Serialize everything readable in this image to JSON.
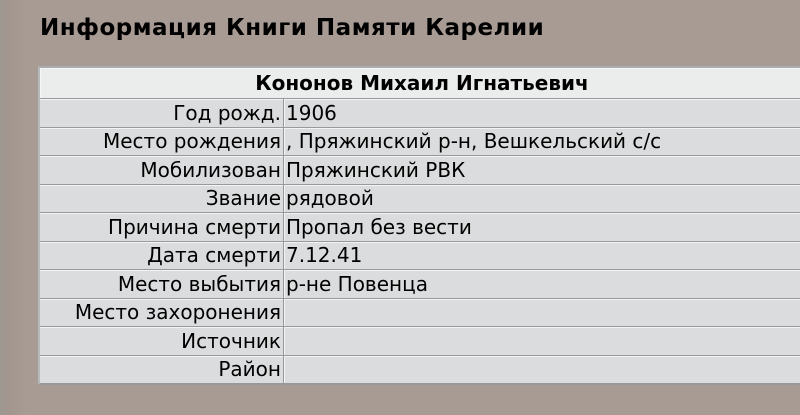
{
  "page": {
    "title": "Информация Книги Памяти Карелии"
  },
  "record": {
    "name": "Кононов Михаил Игнатьевич",
    "fields": [
      {
        "label": "Год рожд.",
        "value": "1906"
      },
      {
        "label": "Место рождения",
        "value": ", Пряжинский р-н, Вешкельский с/с"
      },
      {
        "label": "Мобилизован",
        "value": "Пряжинский РВК"
      },
      {
        "label": "Звание",
        "value": "рядовой"
      },
      {
        "label": "Причина смерти",
        "value": "Пропал без вести"
      },
      {
        "label": "Дата смерти",
        "value": "7.12.41"
      },
      {
        "label": "Место выбытия",
        "value": "р-не Повенца"
      },
      {
        "label": "Место захоронения",
        "value": ""
      },
      {
        "label": "Источник",
        "value": ""
      },
      {
        "label": "Район",
        "value": ""
      }
    ]
  },
  "colors": {
    "page_background": "#a89b94",
    "header_row_background": "#ebecec",
    "data_row_background": "#dbdcdd",
    "border_dark": "#98999b",
    "border_light": "#f2f3f3",
    "text": "#000000"
  }
}
